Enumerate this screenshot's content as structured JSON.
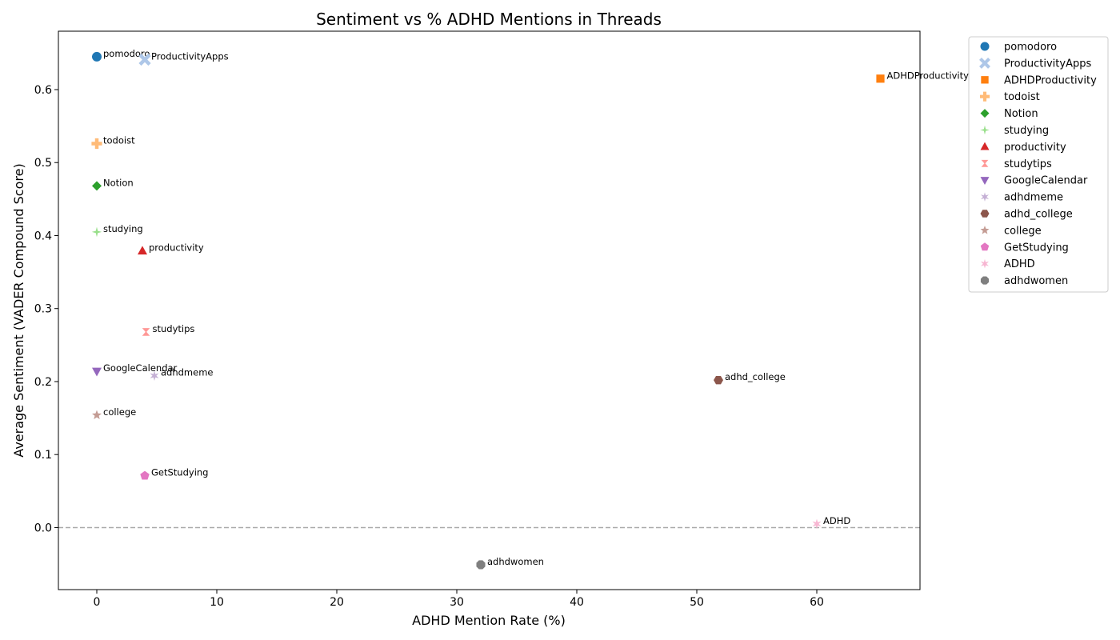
{
  "chart_data": {
    "type": "scatter",
    "title": "Sentiment vs % ADHD Mentions in Threads",
    "xlabel": "ADHD Mention Rate (%)",
    "ylabel": "Average Sentiment (VADER Compound Score)",
    "xlim": [
      -3.2,
      68.6
    ],
    "ylim": [
      -0.085,
      0.68
    ],
    "xticks": [
      0,
      10,
      20,
      30,
      40,
      50,
      60
    ],
    "yticks": [
      0.0,
      0.1,
      0.2,
      0.3,
      0.4,
      0.5,
      0.6
    ],
    "ytick_labels": [
      "0.0",
      "0.1",
      "0.2",
      "0.3",
      "0.4",
      "0.5",
      "0.6"
    ],
    "grid": false,
    "legend_position": "outside-top-right",
    "reference_line": {
      "y": 0,
      "style": "dashed",
      "color": "#aaaaaa"
    },
    "points": [
      {
        "name": "pomodoro",
        "x": 0.0,
        "y": 0.645,
        "marker": "circle",
        "color": "#1f77b4"
      },
      {
        "name": "ProductivityApps",
        "x": 4.0,
        "y": 0.641,
        "marker": "x",
        "color": "#aec7e8"
      },
      {
        "name": "ADHDProductivity",
        "x": 65.3,
        "y": 0.615,
        "marker": "square",
        "color": "#ff7f0e"
      },
      {
        "name": "todoist",
        "x": 0.0,
        "y": 0.526,
        "marker": "plus",
        "color": "#ffbb78"
      },
      {
        "name": "Notion",
        "x": 0.0,
        "y": 0.468,
        "marker": "diamond",
        "color": "#2ca02c"
      },
      {
        "name": "studying",
        "x": 0.0,
        "y": 0.405,
        "marker": "thin_diamond",
        "color": "#98df8a"
      },
      {
        "name": "productivity",
        "x": 3.8,
        "y": 0.379,
        "marker": "triangle_up",
        "color": "#d62728"
      },
      {
        "name": "studytips",
        "x": 4.1,
        "y": 0.268,
        "marker": "bowtie",
        "color": "#ff9896"
      },
      {
        "name": "GoogleCalendar",
        "x": 0.0,
        "y": 0.214,
        "marker": "triangle_down",
        "color": "#9467bd"
      },
      {
        "name": "adhdmeme",
        "x": 4.8,
        "y": 0.208,
        "marker": "asterisk",
        "color": "#c5b0d5"
      },
      {
        "name": "adhd_college",
        "x": 51.8,
        "y": 0.202,
        "marker": "hexagon",
        "color": "#8c564b"
      },
      {
        "name": "college",
        "x": 0.0,
        "y": 0.154,
        "marker": "star",
        "color": "#c49c94"
      },
      {
        "name": "GetStudying",
        "x": 4.0,
        "y": 0.071,
        "marker": "pentagon",
        "color": "#e377c2"
      },
      {
        "name": "ADHD",
        "x": 60.0,
        "y": 0.005,
        "marker": "asterisk",
        "color": "#f7b6d2"
      },
      {
        "name": "adhdwomen",
        "x": 32.0,
        "y": -0.051,
        "marker": "octagon",
        "color": "#7f7f7f"
      }
    ]
  }
}
